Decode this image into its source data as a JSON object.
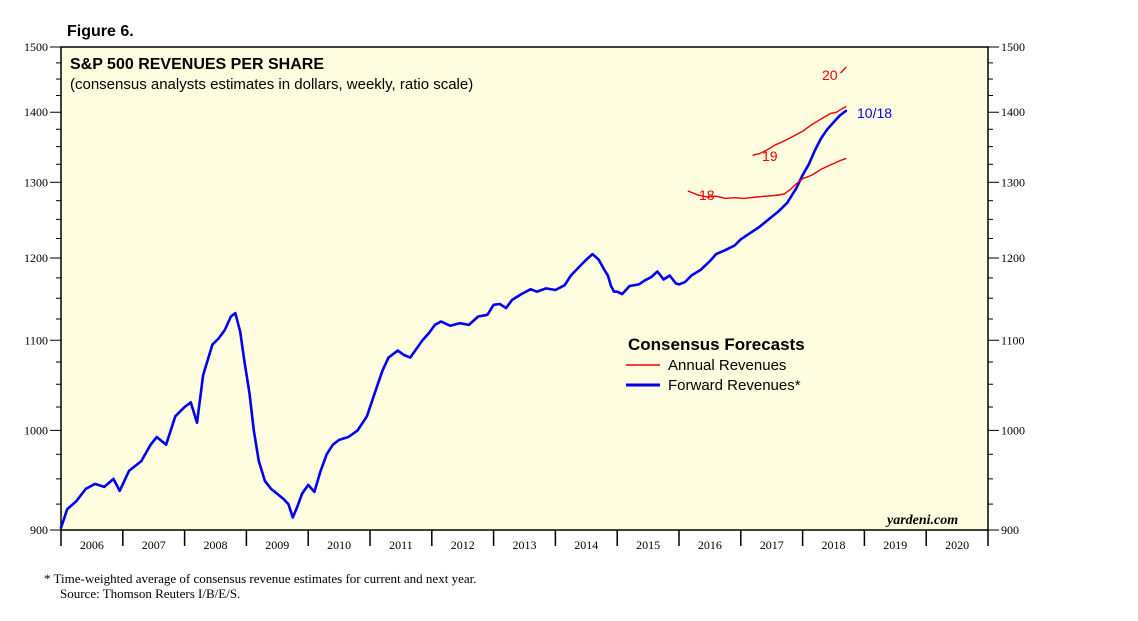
{
  "figure_label": "Figure 6.",
  "footnote": "*  Time-weighted average of consensus revenue estimates for current and next year.",
  "source": "Source: Thomson Reuters I/B/E/S.",
  "watermark": "yardeni.com",
  "colors": {
    "background": "#fffde0",
    "forward": "#0000ee",
    "annual": "#ee0000",
    "axis": "#000000"
  },
  "chart_data": {
    "type": "line",
    "title": "S&P 500 REVENUES PER SHARE",
    "subtitle": "(consensus analysts estimates in dollars, weekly, ratio scale)",
    "y_scale": "log",
    "ylim": [
      900,
      1500
    ],
    "y_ticks": [
      "900",
      "1000",
      "1100",
      "1200",
      "1300",
      "1400",
      "1500"
    ],
    "xlim": [
      2006,
      2021
    ],
    "x_ticks": [
      "2006",
      "2007",
      "2008",
      "2009",
      "2010",
      "2011",
      "2012",
      "2013",
      "2014",
      "2015",
      "2016",
      "2017",
      "2018",
      "2019",
      "2020"
    ],
    "legend": {
      "title": "Consensus Forecasts",
      "entries": [
        "Annual Revenues",
        "Forward Revenues*"
      ],
      "placement": "center-right"
    },
    "annotations": [
      "18",
      "19",
      "20",
      "10/18"
    ],
    "series": [
      {
        "name": "Forward Revenues*",
        "color": "#0000ee",
        "points": [
          [
            2006.0,
            902
          ],
          [
            2006.1,
            920
          ],
          [
            2006.25,
            928
          ],
          [
            2006.4,
            940
          ],
          [
            2006.55,
            945
          ],
          [
            2006.7,
            942
          ],
          [
            2006.85,
            950
          ],
          [
            2006.95,
            938
          ],
          [
            2007.1,
            958
          ],
          [
            2007.3,
            968
          ],
          [
            2007.45,
            985
          ],
          [
            2007.55,
            993
          ],
          [
            2007.7,
            985
          ],
          [
            2007.85,
            1015
          ],
          [
            2008.0,
            1025
          ],
          [
            2008.1,
            1030
          ],
          [
            2008.2,
            1008
          ],
          [
            2008.3,
            1060
          ],
          [
            2008.45,
            1095
          ],
          [
            2008.55,
            1102
          ],
          [
            2008.65,
            1112
          ],
          [
            2008.75,
            1128
          ],
          [
            2008.82,
            1132
          ],
          [
            2008.9,
            1110
          ],
          [
            2008.97,
            1075
          ],
          [
            2009.05,
            1040
          ],
          [
            2009.12,
            1000
          ],
          [
            2009.2,
            968
          ],
          [
            2009.3,
            948
          ],
          [
            2009.4,
            940
          ],
          [
            2009.5,
            935
          ],
          [
            2009.6,
            930
          ],
          [
            2009.68,
            925
          ],
          [
            2009.75,
            912
          ],
          [
            2009.82,
            922
          ],
          [
            2009.9,
            935
          ],
          [
            2010.0,
            944
          ],
          [
            2010.1,
            937
          ],
          [
            2010.2,
            958
          ],
          [
            2010.3,
            975
          ],
          [
            2010.4,
            985
          ],
          [
            2010.5,
            990
          ],
          [
            2010.65,
            993
          ],
          [
            2010.8,
            1000
          ],
          [
            2010.95,
            1015
          ],
          [
            2011.1,
            1045
          ],
          [
            2011.2,
            1065
          ],
          [
            2011.3,
            1080
          ],
          [
            2011.45,
            1088
          ],
          [
            2011.55,
            1083
          ],
          [
            2011.65,
            1080
          ],
          [
            2011.75,
            1090
          ],
          [
            2011.85,
            1100
          ],
          [
            2011.95,
            1108
          ],
          [
            2012.05,
            1118
          ],
          [
            2012.15,
            1122
          ],
          [
            2012.3,
            1117
          ],
          [
            2012.45,
            1120
          ],
          [
            2012.6,
            1118
          ],
          [
            2012.75,
            1128
          ],
          [
            2012.9,
            1130
          ],
          [
            2013.0,
            1142
          ],
          [
            2013.1,
            1143
          ],
          [
            2013.2,
            1138
          ],
          [
            2013.3,
            1148
          ],
          [
            2013.45,
            1155
          ],
          [
            2013.6,
            1161
          ],
          [
            2013.7,
            1158
          ],
          [
            2013.85,
            1162
          ],
          [
            2014.0,
            1160
          ],
          [
            2014.15,
            1166
          ],
          [
            2014.25,
            1178
          ],
          [
            2014.35,
            1186
          ],
          [
            2014.5,
            1198
          ],
          [
            2014.6,
            1205
          ],
          [
            2014.7,
            1198
          ],
          [
            2014.8,
            1184
          ],
          [
            2014.85,
            1178
          ],
          [
            2014.9,
            1165
          ],
          [
            2014.95,
            1158
          ],
          [
            2015.0,
            1158
          ],
          [
            2015.08,
            1155
          ],
          [
            2015.2,
            1165
          ],
          [
            2015.35,
            1167
          ],
          [
            2015.45,
            1172
          ],
          [
            2015.55,
            1176
          ],
          [
            2015.65,
            1183
          ],
          [
            2015.75,
            1173
          ],
          [
            2015.85,
            1178
          ],
          [
            2015.95,
            1168
          ],
          [
            2016.0,
            1167
          ],
          [
            2016.1,
            1170
          ],
          [
            2016.2,
            1178
          ],
          [
            2016.35,
            1185
          ],
          [
            2016.5,
            1196
          ],
          [
            2016.6,
            1205
          ],
          [
            2016.75,
            1210
          ],
          [
            2016.9,
            1216
          ],
          [
            2017.0,
            1224
          ],
          [
            2017.15,
            1232
          ],
          [
            2017.3,
            1240
          ],
          [
            2017.45,
            1250
          ],
          [
            2017.6,
            1260
          ],
          [
            2017.75,
            1272
          ],
          [
            2017.9,
            1292
          ],
          [
            2018.0,
            1310
          ],
          [
            2018.1,
            1325
          ],
          [
            2018.2,
            1345
          ],
          [
            2018.3,
            1362
          ],
          [
            2018.4,
            1375
          ],
          [
            2018.5,
            1385
          ],
          [
            2018.6,
            1395
          ],
          [
            2018.7,
            1402
          ]
        ]
      },
      {
        "name": "2018 Annual Revenues",
        "label": "18",
        "color": "#ee0000",
        "points": [
          [
            2016.15,
            1288
          ],
          [
            2016.3,
            1283
          ],
          [
            2016.45,
            1280
          ],
          [
            2016.6,
            1281
          ],
          [
            2016.75,
            1278
          ],
          [
            2016.9,
            1279
          ],
          [
            2017.05,
            1278
          ],
          [
            2017.25,
            1280
          ],
          [
            2017.4,
            1281
          ],
          [
            2017.55,
            1282
          ],
          [
            2017.7,
            1284
          ],
          [
            2017.8,
            1290
          ],
          [
            2017.9,
            1298
          ],
          [
            2018.0,
            1305
          ],
          [
            2018.15,
            1310
          ],
          [
            2018.3,
            1318
          ],
          [
            2018.45,
            1324
          ],
          [
            2018.6,
            1330
          ],
          [
            2018.7,
            1333
          ]
        ]
      },
      {
        "name": "2019 Annual Revenues",
        "label": "19",
        "color": "#ee0000",
        "points": [
          [
            2017.2,
            1338
          ],
          [
            2017.3,
            1340
          ],
          [
            2017.4,
            1344
          ],
          [
            2017.55,
            1352
          ],
          [
            2017.7,
            1358
          ],
          [
            2017.85,
            1365
          ],
          [
            2018.0,
            1372
          ],
          [
            2018.15,
            1382
          ],
          [
            2018.3,
            1390
          ],
          [
            2018.45,
            1398
          ],
          [
            2018.55,
            1400
          ],
          [
            2018.65,
            1406
          ],
          [
            2018.7,
            1408
          ]
        ]
      },
      {
        "name": "2020 Annual Revenues",
        "label": "20",
        "color": "#ee0000",
        "points": [
          [
            2018.62,
            1460
          ],
          [
            2018.66,
            1464
          ],
          [
            2018.7,
            1468
          ]
        ]
      }
    ]
  }
}
